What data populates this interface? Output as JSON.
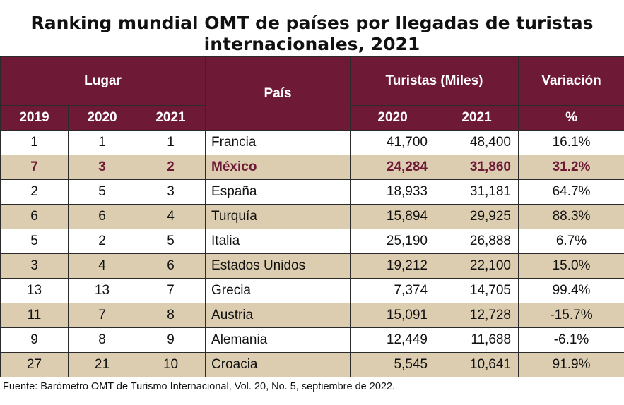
{
  "title_line1": "Ranking mundial OMT de países por llegadas de turistas",
  "title_line2": "internacionales, 2021",
  "header": {
    "lugar": "Lugar",
    "pais": "País",
    "turistas": "Turistas (Miles)",
    "variacion": "Variación",
    "y2019": "2019",
    "y2020": "2020",
    "y2021": "2021",
    "t2020": "2020",
    "t2021": "2021",
    "pct": "%"
  },
  "rows": [
    {
      "r2019": "1",
      "r2020": "1",
      "r2021": "1",
      "pais": "Francia",
      "t2020": "41,700",
      "t2021": "48,400",
      "var": "16.1%"
    },
    {
      "r2019": "7",
      "r2020": "3",
      "r2021": "2",
      "pais": "México",
      "t2020": "24,284",
      "t2021": "31,860",
      "var": "31.2%"
    },
    {
      "r2019": "2",
      "r2020": "5",
      "r2021": "3",
      "pais": "España",
      "t2020": "18,933",
      "t2021": "31,181",
      "var": "64.7%"
    },
    {
      "r2019": "6",
      "r2020": "6",
      "r2021": "4",
      "pais": "Turquía",
      "t2020": "15,894",
      "t2021": "29,925",
      "var": "88.3%"
    },
    {
      "r2019": "5",
      "r2020": "2",
      "r2021": "5",
      "pais": "Italia",
      "t2020": "25,190",
      "t2021": "26,888",
      "var": "6.7%"
    },
    {
      "r2019": "3",
      "r2020": "4",
      "r2021": "6",
      "pais": "Estados Unidos",
      "t2020": "19,212",
      "t2021": "22,100",
      "var": "15.0%"
    },
    {
      "r2019": "13",
      "r2020": "13",
      "r2021": "7",
      "pais": "Grecia",
      "t2020": "7,374",
      "t2021": "14,705",
      "var": "99.4%"
    },
    {
      "r2019": "11",
      "r2020": "7",
      "r2021": "8",
      "pais": "Austria",
      "t2020": "15,091",
      "t2021": "12,728",
      "var": "-15.7%"
    },
    {
      "r2019": "9",
      "r2020": "8",
      "r2021": "9",
      "pais": "Alemania",
      "t2020": "12,449",
      "t2021": "11,688",
      "var": "-6.1%"
    },
    {
      "r2019": "27",
      "r2020": "21",
      "r2021": "10",
      "pais": "Croacia",
      "t2020": "5,545",
      "t2021": "10,641",
      "var": "91.9%"
    }
  ],
  "source": "Fuente: Barómetro OMT de Turismo Internacional, Vol. 20, No. 5, septiembre de 2022.",
  "colors": {
    "header_bg": "#6e1a37",
    "alt_row_bg": "#dccdb0",
    "highlight_text": "#6e1a37"
  }
}
